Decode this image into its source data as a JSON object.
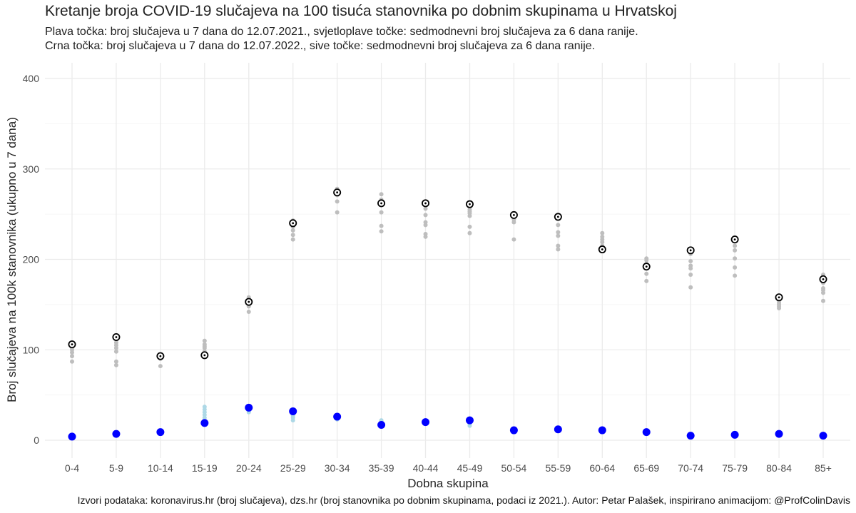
{
  "title": "Kretanje broja COVID-19 slučajeva na 100 tisuća stanovnika po dobnim skupinama u Hrvatskoj",
  "subtitle_line1": "Plava točka: broj slučajeva u 7 dana do 12.07.2021., svjetloplave točke: sedmodnevni broj slučajeva za 6 dana ranije.",
  "subtitle_line2": "Crna točka: broj slučajeva u 7 dana do 12.07.2022., sive točke: sedmodnevni broj slučajeva za 6 dana ranije.",
  "caption": "Izvori podataka: koronavirus.hr (broj slučajeva), dzs.hr (broj stanovnika po dobnim skupinama, podaci iz 2021.). Autor: Petar Palašek, inspirirano animacijom: @ProfColinDavis",
  "chart_data": {
    "type": "scatter",
    "xlabel": "Dobna skupina",
    "ylabel": "Broj slučajeva na 100k stanovnika (ukupno u 7 dana)",
    "ylim": [
      -20,
      410
    ],
    "yticks": [
      0,
      100,
      200,
      300,
      400
    ],
    "grid": true,
    "categories": [
      "0-4",
      "5-9",
      "10-14",
      "15-19",
      "20-24",
      "25-29",
      "30-34",
      "35-39",
      "40-44",
      "45-49",
      "50-54",
      "55-59",
      "60-64",
      "65-69",
      "70-74",
      "75-79",
      "80-84",
      "85+"
    ],
    "colors": {
      "current_2021": "#0000ff",
      "previous_2021": "#add8e6",
      "current_2022": "#000000",
      "previous_2022": "#bebebe"
    },
    "series": [
      {
        "values": [
          4,
          7,
          9,
          19,
          36,
          32,
          26,
          17,
          20,
          22,
          11,
          12,
          11,
          9,
          5,
          6,
          7,
          5
        ]
      },
      {
        "values": [
          [
            3,
            4,
            4,
            5,
            5,
            4
          ],
          [
            6,
            6,
            7,
            7,
            6,
            6
          ],
          [
            8,
            8,
            9,
            8,
            9,
            8
          ],
          [
            22,
            25,
            28,
            31,
            34,
            37
          ],
          [
            32,
            34,
            35,
            36,
            33,
            31
          ],
          [
            22,
            25,
            27,
            28,
            30,
            31
          ],
          [
            23,
            24,
            25,
            26,
            24,
            25
          ],
          [
            18,
            19,
            20,
            21,
            22,
            18
          ],
          [
            19,
            20,
            21,
            19,
            20,
            21
          ],
          [
            16,
            18,
            20,
            22,
            24,
            21
          ],
          [
            10,
            11,
            12,
            11,
            12,
            10
          ],
          [
            11,
            12,
            13,
            12,
            11,
            12
          ],
          [
            10,
            11,
            12,
            11,
            10,
            11
          ],
          [
            8,
            9,
            10,
            9,
            8,
            9
          ],
          [
            5,
            6,
            6,
            5,
            6,
            5
          ],
          [
            5,
            6,
            6,
            5,
            6,
            6
          ],
          [
            6,
            7,
            8,
            7,
            6,
            7
          ],
          [
            4,
            5,
            6,
            5,
            4,
            5
          ]
        ]
      },
      {
        "values": [
          106,
          114,
          93,
          94,
          153,
          240,
          274,
          262,
          262,
          261,
          249,
          247,
          211,
          192,
          210,
          222,
          158,
          178
        ]
      },
      {
        "values": [
          [
            87,
            93,
            97,
            100,
            102,
            105
          ],
          [
            83,
            87,
            98,
            102,
            105,
            108
          ],
          [
            82,
            90,
            92,
            93,
            94,
            95
          ],
          [
            95,
            98,
            102,
            104,
            106,
            110
          ],
          [
            142,
            148,
            153,
            155,
            157,
            158
          ],
          [
            222,
            227,
            232,
            236,
            240,
            243
          ],
          [
            252,
            264,
            271,
            274,
            277,
            278
          ],
          [
            231,
            237,
            252,
            262,
            266,
            272
          ],
          [
            225,
            228,
            238,
            241,
            249,
            256
          ],
          [
            229,
            236,
            248,
            251,
            253,
            255
          ],
          [
            222,
            241,
            244,
            247,
            249,
            250
          ],
          [
            211,
            215,
            226,
            230,
            238,
            245
          ],
          [
            211,
            215,
            219,
            222,
            225,
            229
          ],
          [
            176,
            184,
            190,
            195,
            199,
            201
          ],
          [
            169,
            183,
            190,
            193,
            198,
            206
          ],
          [
            182,
            191,
            201,
            210,
            215,
            220
          ],
          [
            146,
            148,
            150,
            152,
            154,
            157
          ],
          [
            154,
            163,
            166,
            168,
            174,
            183
          ]
        ]
      }
    ]
  }
}
